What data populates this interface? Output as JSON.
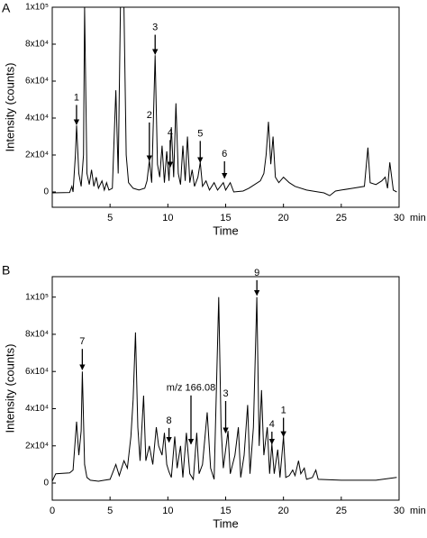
{
  "chart_data": [
    {
      "type": "line",
      "panel_label": "A",
      "xlabel": "Time",
      "ylabel": "Intensity (counts)",
      "x_unit": "min",
      "xlim": [
        0,
        30
      ],
      "xticks": [
        5,
        10,
        15,
        20,
        25,
        30
      ],
      "ylim": [
        -8300,
        100000
      ],
      "yticks": [
        0,
        {
          "value": 20000,
          "label": "2x10⁴"
        },
        {
          "value": 40000,
          "label": "4x10⁴"
        },
        {
          "value": 60000,
          "label": "6x10⁴"
        },
        {
          "value": 80000,
          "label": "8x10⁴"
        },
        {
          "value": 100000,
          "label": "1x10⁵"
        }
      ],
      "x": [
        0.0,
        1.5,
        1.7,
        1.8,
        2.0,
        2.1,
        2.3,
        2.5,
        2.7,
        2.8,
        3.0,
        3.2,
        3.4,
        3.6,
        3.8,
        4.0,
        4.3,
        4.5,
        4.7,
        4.9,
        5.2,
        5.5,
        5.7,
        5.9,
        6.2,
        6.4,
        6.6,
        7.0,
        7.5,
        8.0,
        8.2,
        8.4,
        8.6,
        8.9,
        9.1,
        9.3,
        9.5,
        9.7,
        9.9,
        10.1,
        10.3,
        10.5,
        10.7,
        10.9,
        11.1,
        11.3,
        11.5,
        11.7,
        11.9,
        12.1,
        12.3,
        12.6,
        12.8,
        13.0,
        13.3,
        13.6,
        14.0,
        14.3,
        14.8,
        15.0,
        15.4,
        15.7,
        16.5,
        17.0,
        17.5,
        18.0,
        18.3,
        18.5,
        18.7,
        18.9,
        19.1,
        19.3,
        19.6,
        20.0,
        20.5,
        21.0,
        22.0,
        23.0,
        23.5,
        24.0,
        24.5,
        25.0,
        26.0,
        27.0,
        27.3,
        27.5,
        28.0,
        28.5,
        28.8,
        29.0,
        29.2,
        29.5,
        29.8
      ],
      "series": [
        {
          "color": "#000000",
          "values": [
            -500,
            -300,
            3000,
            0,
            20000,
            36000,
            10000,
            3000,
            20000,
            100000,
            10000,
            4000,
            12000,
            3000,
            8000,
            2000,
            6000,
            1000,
            5000,
            1000,
            2000,
            55000,
            10000,
            100000,
            100000,
            20000,
            5000,
            2000,
            1000,
            2000,
            6000,
            17000,
            5000,
            74000,
            15000,
            8000,
            25000,
            5000,
            22000,
            6000,
            35000,
            8000,
            48000,
            10000,
            4000,
            25000,
            6000,
            30000,
            5000,
            12000,
            3000,
            8000,
            16000,
            3000,
            6000,
            1000,
            5000,
            1000,
            5000,
            1000,
            5000,
            0,
            500,
            2000,
            4000,
            6000,
            10000,
            20000,
            38000,
            15000,
            30000,
            8000,
            5000,
            8000,
            5000,
            3000,
            1000,
            0,
            -500,
            -2000,
            500,
            1000,
            2000,
            3000,
            24000,
            5000,
            4000,
            6000,
            8000,
            2000,
            16000,
            1000,
            0
          ]
        }
      ],
      "annotations": [
        {
          "text": "1",
          "x": 2.1,
          "y": 36500,
          "y_text": 51000
        },
        {
          "text": "2",
          "x": 8.4,
          "y": 17000,
          "y_text": 41500
        },
        {
          "text": "3",
          "x": 8.9,
          "y": 74500,
          "y_text": 89000
        },
        {
          "text": "4",
          "x": 10.2,
          "y": 13500,
          "y_text": 32000
        },
        {
          "text": "5",
          "x": 12.8,
          "y": 16000,
          "y_text": 31500
        },
        {
          "text": "6",
          "x": 14.9,
          "y": 7500,
          "y_text": 20500
        }
      ]
    },
    {
      "type": "line",
      "panel_label": "B",
      "xlabel": "Time",
      "ylabel": "Intensity (counts)",
      "x_unit": "min",
      "xlim": [
        0,
        30
      ],
      "xticks": [
        0,
        5,
        10,
        15,
        20,
        25,
        30
      ],
      "ylim": [
        -9200,
        111000
      ],
      "yticks": [
        0,
        {
          "value": 20000,
          "label": "2x10⁴"
        },
        {
          "value": 40000,
          "label": "4x10⁴"
        },
        {
          "value": 60000,
          "label": "6x10⁴"
        },
        {
          "value": 80000,
          "label": "8x10⁴"
        },
        {
          "value": 100000,
          "label": "1x10⁵"
        }
      ],
      "x": [
        0.0,
        0.3,
        1.5,
        1.8,
        2.1,
        2.3,
        2.5,
        2.6,
        2.8,
        3.0,
        3.3,
        4.0,
        4.5,
        5.0,
        5.5,
        5.8,
        6.2,
        6.5,
        6.8,
        7.0,
        7.2,
        7.4,
        7.6,
        7.9,
        8.1,
        8.4,
        8.7,
        9.0,
        9.2,
        9.5,
        9.7,
        9.9,
        10.1,
        10.3,
        10.6,
        10.8,
        11.1,
        11.3,
        11.6,
        11.9,
        12.2,
        12.5,
        12.7,
        13.0,
        13.4,
        13.7,
        14.0,
        14.4,
        14.6,
        14.8,
        15.2,
        15.4,
        15.8,
        16.1,
        16.3,
        16.6,
        16.9,
        17.1,
        17.4,
        17.7,
        17.9,
        18.1,
        18.3,
        18.6,
        18.8,
        19.0,
        19.2,
        19.5,
        19.7,
        20.0,
        20.2,
        20.5,
        20.8,
        21.0,
        21.3,
        21.5,
        21.8,
        22.0,
        22.5,
        22.8,
        23.0,
        25.0,
        28.0,
        29.8
      ],
      "series": [
        {
          "color": "#000000",
          "values": [
            1000,
            5000,
            5500,
            7000,
            33000,
            15000,
            28000,
            60000,
            10000,
            3000,
            1500,
            1000,
            1500,
            2000,
            10000,
            4000,
            12000,
            8000,
            25000,
            45000,
            81000,
            30000,
            12000,
            47000,
            12000,
            20000,
            10000,
            30000,
            20000,
            15000,
            27000,
            10000,
            6000,
            3000,
            25000,
            8000,
            20000,
            3000,
            27000,
            5000,
            2000,
            27000,
            5000,
            10000,
            38000,
            8000,
            2000,
            100000,
            30000,
            8000,
            28000,
            5000,
            15000,
            30000,
            3000,
            15000,
            42000,
            5000,
            30000,
            100000,
            20000,
            50000,
            15000,
            30000,
            5000,
            21000,
            5000,
            18000,
            3000,
            25000,
            3000,
            4000,
            7000,
            4000,
            12000,
            5000,
            8000,
            2000,
            3000,
            7000,
            2000,
            1500,
            1500,
            3000
          ]
        }
      ],
      "annotations": [
        {
          "text": "7",
          "x": 2.6,
          "y": 61000,
          "y_text": 76000
        },
        {
          "text": "8",
          "x": 10.1,
          "y": 22000,
          "y_text": 33500
        },
        {
          "text": "m/z 166.08",
          "x": 12.0,
          "y": 21000,
          "y_text": 51000
        },
        {
          "text": "3",
          "x": 15.0,
          "y": 27000,
          "y_text": 48000
        },
        {
          "text": "9",
          "x": 17.7,
          "y": 101000,
          "y_text": 113000
        },
        {
          "text": "4",
          "x": 19.0,
          "y": 21000,
          "y_text": 31500
        },
        {
          "text": "1",
          "x": 20.0,
          "y": 25000,
          "y_text": 39000
        }
      ]
    }
  ]
}
